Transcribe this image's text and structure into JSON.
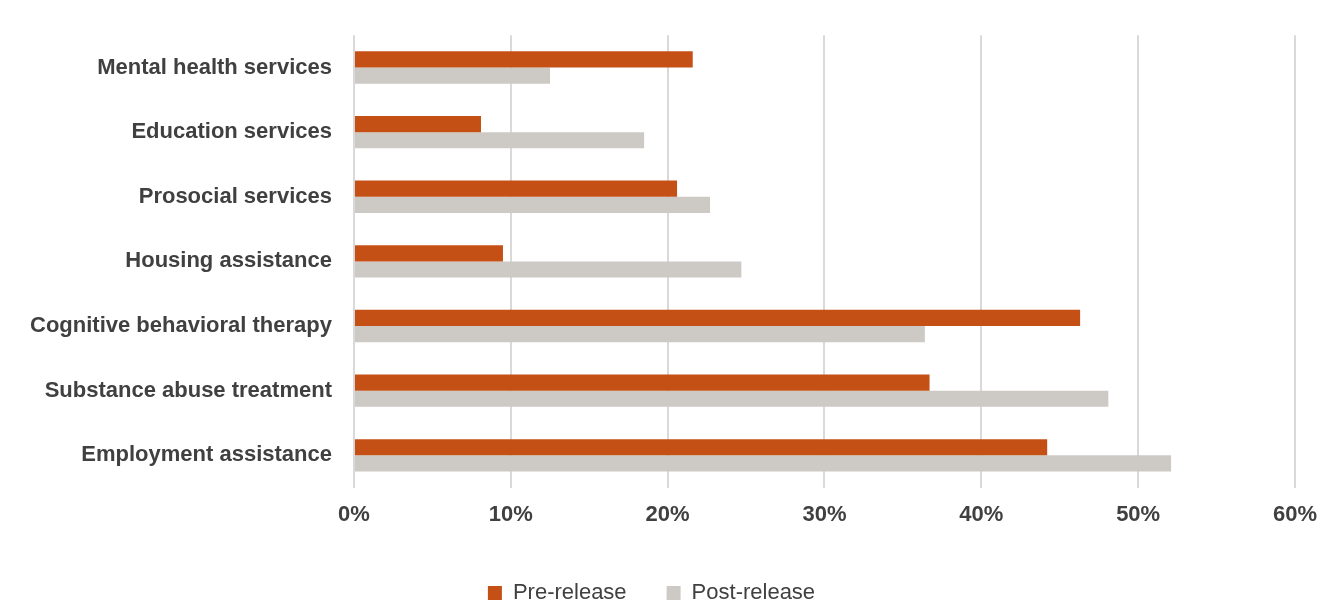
{
  "chart_data": {
    "type": "bar",
    "orientation": "horizontal",
    "categories": [
      "Mental health services",
      "Education services",
      "Prosocial services",
      "Housing assistance",
      "Cognitive behavioral therapy",
      "Substance abuse treatment",
      "Employment assistance"
    ],
    "series": [
      {
        "name": "Pre-release",
        "color": "#c55016",
        "values": [
          21.6,
          8.1,
          20.6,
          9.5,
          46.3,
          36.7,
          44.2
        ]
      },
      {
        "name": "Post-release",
        "color": "#cdc9c5",
        "values": [
          12.5,
          18.5,
          22.7,
          24.7,
          36.4,
          48.1,
          52.1
        ]
      }
    ],
    "xlim": [
      0,
      60
    ],
    "xticks": [
      {
        "value": 0,
        "label": "0%"
      },
      {
        "value": 10,
        "label": "10%"
      },
      {
        "value": 20,
        "label": "20%"
      },
      {
        "value": 30,
        "label": "30%"
      },
      {
        "value": 40,
        "label": "40%"
      },
      {
        "value": 50,
        "label": "50%"
      },
      {
        "value": 60,
        "label": "60%"
      }
    ],
    "grid": "x",
    "legend": "bottom"
  }
}
